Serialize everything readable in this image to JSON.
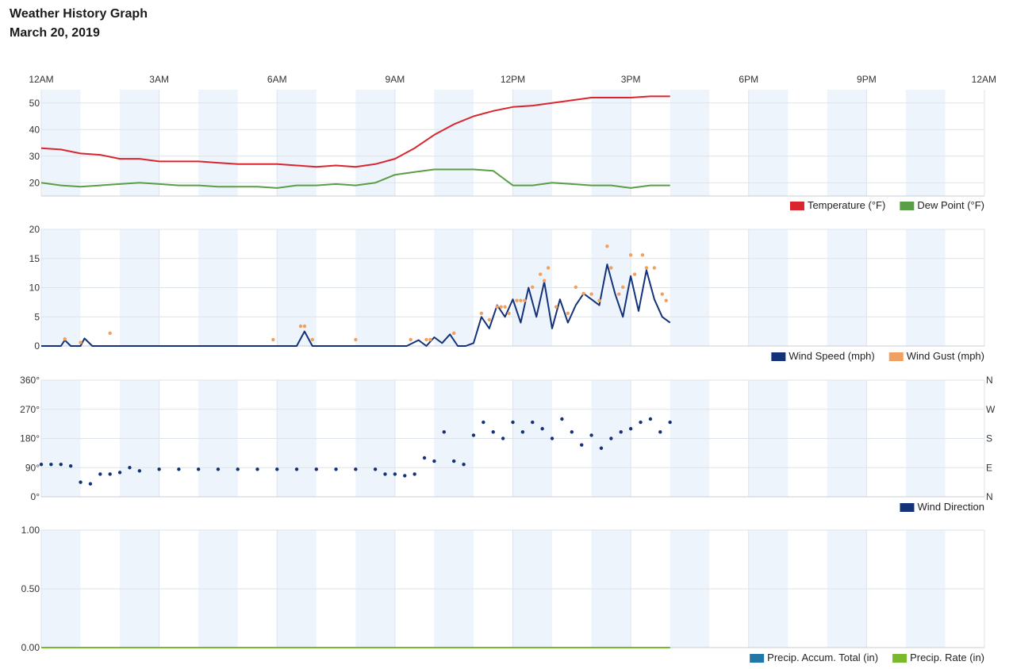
{
  "page": {
    "title": "Weather History Graph",
    "date": "March 20, 2019"
  },
  "time_axis": {
    "labels": [
      "12AM",
      "3AM",
      "6AM",
      "9AM",
      "12PM",
      "3PM",
      "6PM",
      "9PM",
      "12AM"
    ],
    "hours": [
      0,
      3,
      6,
      9,
      12,
      15,
      18,
      21,
      24
    ]
  },
  "chart_data": [
    {
      "type": "line",
      "x_unit": "hour of day",
      "xlim": [
        0,
        24
      ],
      "ylim": [
        15,
        55
      ],
      "yticks": [
        20,
        30,
        40,
        50
      ],
      "ytick_labels": [
        "20",
        "30",
        "40",
        "50"
      ],
      "grid": true,
      "legend_position": "bottom-right",
      "series": [
        {
          "name": "Temperature (°F)",
          "color": "#d9262e",
          "x": [
            0,
            0.5,
            1,
            1.5,
            2,
            2.5,
            3,
            3.5,
            4,
            4.5,
            5,
            5.5,
            6,
            6.5,
            7,
            7.5,
            8,
            8.5,
            9,
            9.5,
            10,
            10.5,
            11,
            11.5,
            12,
            12.5,
            13,
            13.5,
            14,
            14.5,
            15,
            15.5,
            16
          ],
          "values": [
            33,
            32.5,
            31,
            30.5,
            29,
            29,
            28,
            28,
            28,
            27.5,
            27,
            27,
            27,
            26.5,
            26,
            26.5,
            26,
            27,
            29,
            33,
            38,
            42,
            45,
            47,
            48.5,
            49,
            50,
            51,
            52,
            52,
            52,
            52.5,
            52.5
          ]
        },
        {
          "name": "Dew Point (°F)",
          "color": "#5a9e47",
          "x": [
            0,
            0.5,
            1,
            1.5,
            2,
            2.5,
            3,
            3.5,
            4,
            4.5,
            5,
            5.5,
            6,
            6.5,
            7,
            7.5,
            8,
            8.5,
            9,
            9.5,
            10,
            10.5,
            11,
            11.5,
            12,
            12.5,
            13,
            13.5,
            14,
            14.5,
            15,
            15.5,
            16
          ],
          "values": [
            20,
            19,
            18.5,
            19,
            19.5,
            20,
            19.5,
            19,
            19,
            18.5,
            18.5,
            18.5,
            18,
            19,
            19,
            19.5,
            19,
            20,
            23,
            24,
            25,
            25,
            25,
            24.5,
            19,
            19,
            20,
            19.5,
            19,
            19,
            18,
            19,
            19
          ]
        }
      ]
    },
    {
      "type": "line",
      "x_unit": "hour of day",
      "xlim": [
        0,
        24
      ],
      "ylim": [
        0,
        20
      ],
      "yticks": [
        0,
        5,
        10,
        15,
        20
      ],
      "ytick_labels": [
        "0",
        "5",
        "10",
        "15",
        "20"
      ],
      "grid": true,
      "legend_position": "bottom-right",
      "series": [
        {
          "name": "Wind Speed (mph)",
          "color": "#14327a",
          "style": "line",
          "x": [
            0,
            0.5,
            0.6,
            0.75,
            1,
            1.1,
            1.3,
            2,
            3,
            4,
            5,
            6,
            6.3,
            6.5,
            6.7,
            6.9,
            7.2,
            8,
            9,
            9.3,
            9.6,
            9.8,
            10,
            10.2,
            10.4,
            10.6,
            10.8,
            11,
            11.2,
            11.4,
            11.6,
            11.8,
            12,
            12.2,
            12.4,
            12.6,
            12.8,
            13,
            13.2,
            13.4,
            13.6,
            13.8,
            14,
            14.2,
            14.4,
            14.6,
            14.8,
            15,
            15.2,
            15.4,
            15.6,
            15.8,
            16
          ],
          "values": [
            0,
            0,
            1,
            0,
            0,
            1.3,
            0,
            0,
            0,
            0,
            0,
            0,
            0,
            0,
            2.5,
            0,
            0,
            0,
            0,
            0,
            1,
            0,
            1.5,
            0.5,
            2,
            0,
            0,
            0.5,
            5,
            3,
            7,
            5,
            8,
            4,
            10,
            5,
            11,
            3,
            8,
            4,
            7,
            9,
            8,
            7,
            14,
            9,
            5,
            12,
            6,
            13,
            8,
            5,
            4
          ]
        },
        {
          "name": "Wind Gust (mph)",
          "color": "#f0a060",
          "style": "dots",
          "x": [
            0.6,
            1,
            1.75,
            5.9,
            6.6,
            6.7,
            6.9,
            8,
            9.4,
            9.8,
            9.9,
            10.5,
            11.2,
            11.4,
            11.6,
            11.7,
            11.8,
            11.9,
            12.1,
            12.2,
            12.3,
            12.5,
            12.7,
            12.8,
            12.9,
            13.1,
            13.4,
            13.6,
            13.8,
            14,
            14.2,
            14.4,
            14.5,
            14.7,
            14.8,
            15,
            15.1,
            15.3,
            15.4,
            15.6,
            15.8,
            15.9
          ],
          "values": [
            1.2,
            0.6,
            2.2,
            1.1,
            3.4,
            3.4,
            1.1,
            1.1,
            1.1,
            1.1,
            1.1,
            2.2,
            5.6,
            4.5,
            6.7,
            6.7,
            6.7,
            5.6,
            7.8,
            7.8,
            7.8,
            10.1,
            12.3,
            11.2,
            13.4,
            6.7,
            5.6,
            10.1,
            9,
            8.9,
            7.8,
            17.1,
            13.4,
            8.9,
            10.1,
            15.6,
            12.3,
            15.6,
            13.4,
            13.4,
            8.9,
            7.8
          ]
        }
      ]
    },
    {
      "type": "scatter",
      "x_unit": "hour of day",
      "xlim": [
        0,
        24
      ],
      "ylim": [
        0,
        360
      ],
      "yticks": [
        0,
        90,
        180,
        270,
        360
      ],
      "ytick_labels": [
        "0°",
        "90°",
        "180°",
        "270°",
        "360°"
      ],
      "right_labels": [
        "N",
        "E",
        "S",
        "W",
        "N"
      ],
      "grid": true,
      "legend_position": "bottom-right",
      "series": [
        {
          "name": "Wind Direction",
          "color": "#14327a",
          "x": [
            0,
            0.25,
            0.5,
            0.75,
            1,
            1.25,
            1.5,
            1.75,
            2,
            2.25,
            2.5,
            3,
            3.5,
            4,
            4.5,
            5,
            5.5,
            6,
            6.5,
            7,
            7.5,
            8,
            8.5,
            8.75,
            9,
            9.25,
            9.5,
            9.75,
            10,
            10.25,
            10.5,
            10.75,
            11,
            11.25,
            11.5,
            11.75,
            12,
            12.25,
            12.5,
            12.75,
            13,
            13.25,
            13.5,
            13.75,
            14,
            14.25,
            14.5,
            14.75,
            15,
            15.25,
            15.5,
            15.75,
            16
          ],
          "values": [
            100,
            100,
            100,
            95,
            45,
            40,
            70,
            70,
            75,
            90,
            80,
            85,
            85,
            85,
            85,
            85,
            85,
            85,
            85,
            85,
            85,
            85,
            85,
            70,
            70,
            65,
            70,
            120,
            110,
            200,
            110,
            100,
            190,
            230,
            200,
            180,
            230,
            200,
            230,
            210,
            180,
            240,
            200,
            160,
            190,
            150,
            180,
            200,
            210,
            230,
            240,
            200,
            230
          ]
        }
      ]
    },
    {
      "type": "line",
      "x_unit": "hour of day",
      "xlim": [
        0,
        24
      ],
      "ylim": [
        0,
        1
      ],
      "yticks": [
        0,
        0.5,
        1
      ],
      "ytick_labels": [
        "0.00",
        "0.50",
        "1.00"
      ],
      "grid": true,
      "legend_position": "bottom-right",
      "series": [
        {
          "name": "Precip. Accum. Total (in)",
          "color": "#2077a8",
          "x": [
            0,
            16
          ],
          "values": [
            0,
            0
          ]
        },
        {
          "name": "Precip. Rate (in)",
          "color": "#7ab82e",
          "x": [
            0,
            16
          ],
          "values": [
            0,
            0
          ]
        }
      ]
    }
  ]
}
